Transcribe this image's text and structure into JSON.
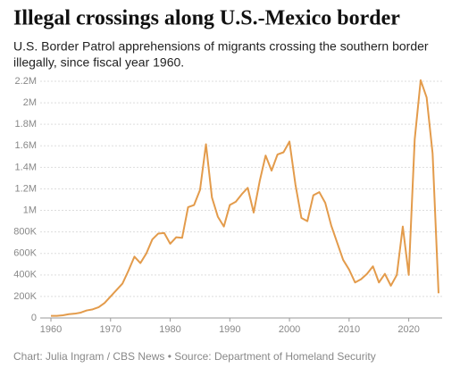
{
  "chart_data": {
    "type": "line",
    "title": "Illegal crossings along U.S.-Mexico border",
    "subtitle": [
      "U.S. Border Patrol apprehensions of migrants crossing the southern border",
      "illegally, since fiscal year 1960."
    ],
    "source": "Chart: Julia Ingram / CBS News • Source: Department of Homeland Security",
    "x": [
      1960,
      1961,
      1962,
      1963,
      1964,
      1965,
      1966,
      1967,
      1968,
      1969,
      1970,
      1971,
      1972,
      1973,
      1974,
      1975,
      1976,
      1977,
      1978,
      1979,
      1980,
      1981,
      1982,
      1983,
      1984,
      1985,
      1986,
      1987,
      1988,
      1989,
      1990,
      1991,
      1992,
      1993,
      1994,
      1995,
      1996,
      1997,
      1998,
      1999,
      2000,
      2001,
      2002,
      2003,
      2004,
      2005,
      2006,
      2007,
      2008,
      2009,
      2010,
      2011,
      2012,
      2013,
      2014,
      2015,
      2016,
      2017,
      2018,
      2019,
      2020,
      2021,
      2022,
      2023,
      2024,
      2025
    ],
    "series": [
      {
        "name": "Apprehensions",
        "color": "#e39b4b",
        "values": [
          20000,
          20000,
          25000,
          35000,
          40000,
          50000,
          70000,
          80000,
          100000,
          140000,
          200000,
          260000,
          320000,
          440000,
          570000,
          510000,
          600000,
          730000,
          785000,
          790000,
          690000,
          750000,
          745000,
          1030000,
          1050000,
          1190000,
          1615000,
          1120000,
          940000,
          850000,
          1050000,
          1080000,
          1150000,
          1210000,
          980000,
          1270000,
          1510000,
          1370000,
          1520000,
          1540000,
          1640000,
          1240000,
          930000,
          900000,
          1140000,
          1170000,
          1070000,
          860000,
          700000,
          540000,
          450000,
          330000,
          360000,
          410000,
          480000,
          330000,
          410000,
          300000,
          400000,
          850000,
          400000,
          1660000,
          2210000,
          2050000,
          1530000,
          230000
        ]
      }
    ],
    "xlim": [
      1958.2,
      2025.6
    ],
    "xticks": [
      1960,
      1970,
      1980,
      1990,
      2000,
      2010,
      2020
    ],
    "ylim": [
      0,
      2200000
    ],
    "yticks": [
      0,
      {
        "value": 200000,
        "label": "200K"
      },
      {
        "value": 400000,
        "label": "400K"
      },
      {
        "value": 600000,
        "label": "600K"
      },
      {
        "value": 800000,
        "label": "800K"
      },
      {
        "value": 1000000,
        "label": "1M"
      },
      {
        "value": 1200000,
        "label": "1.2M"
      },
      {
        "value": 1400000,
        "label": "1.4M"
      },
      {
        "value": 1600000,
        "label": "1.6M"
      },
      {
        "value": 1800000,
        "label": "1.8M"
      },
      {
        "value": 2000000,
        "label": "2M"
      },
      {
        "value": 2200000,
        "label": "2.2M"
      }
    ],
    "grid": true
  }
}
